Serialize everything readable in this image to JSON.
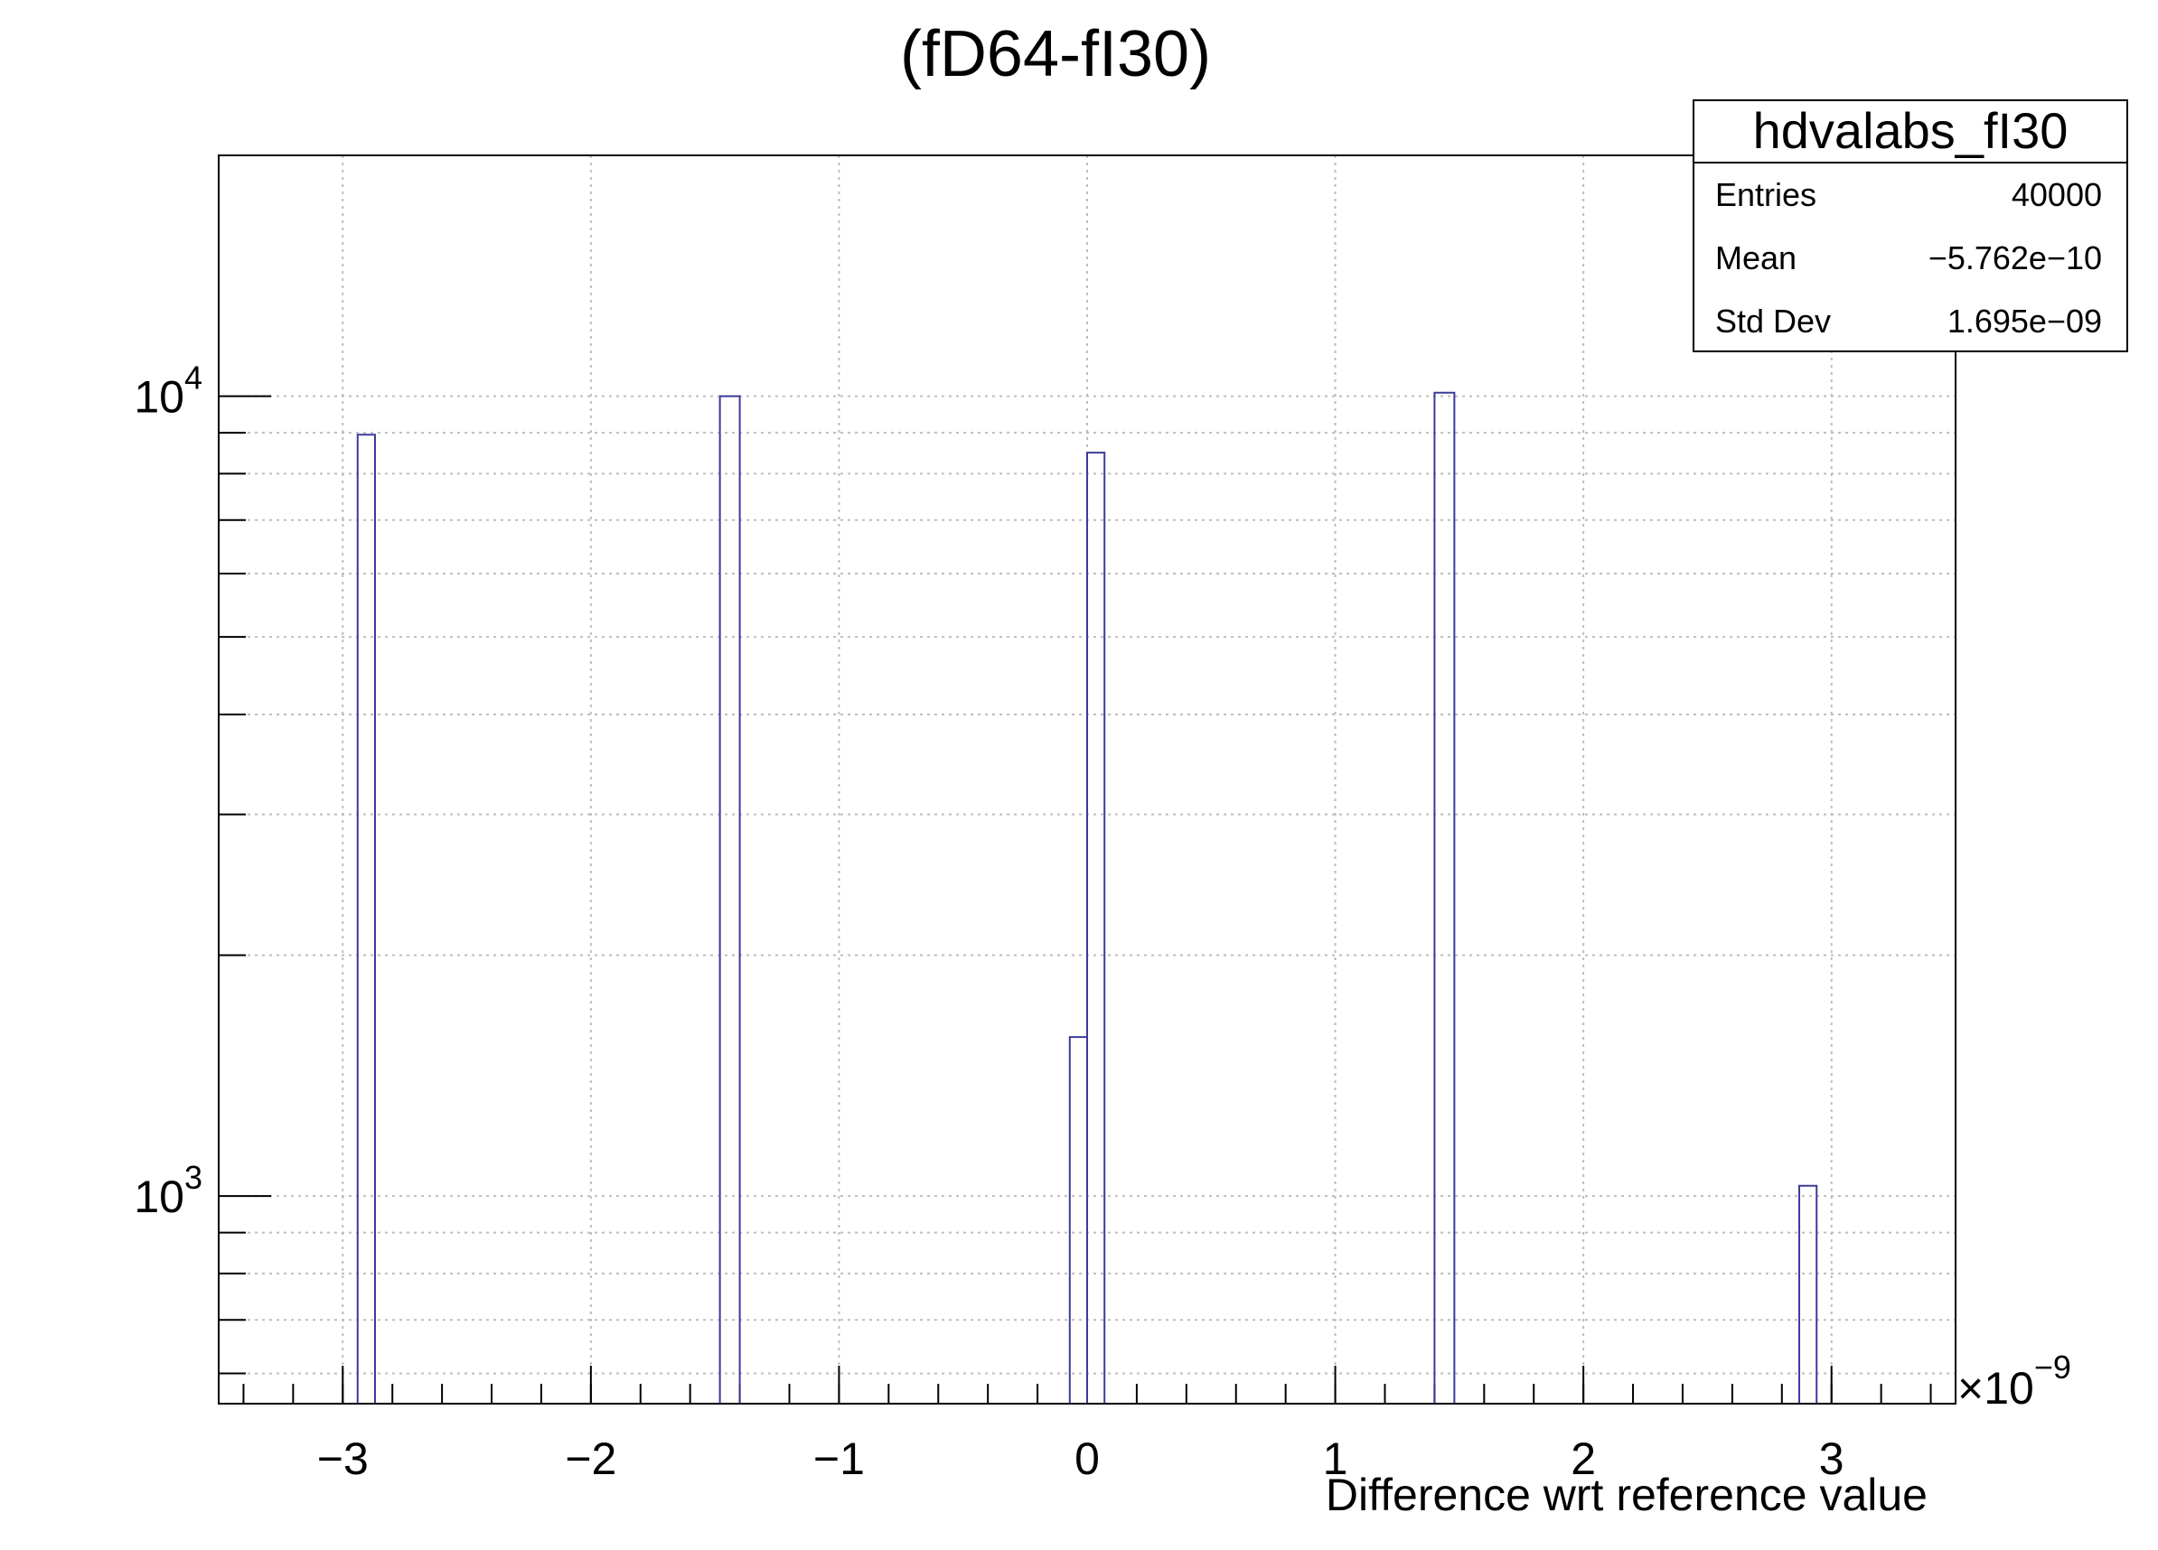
{
  "chart_data": {
    "type": "histogram",
    "title": "(fD64-fI30)",
    "xlabel": "Difference wrt reference value",
    "ylabel": "",
    "x_multiplier_base": "×10",
    "x_multiplier_exponent": "−9",
    "xlim": [
      -3.5,
      3.5
    ],
    "ylim": [
      550,
      20000
    ],
    "y_scale": "log",
    "grid": true,
    "x_ticks": [
      {
        "value": -3,
        "label": "−3"
      },
      {
        "value": -2,
        "label": "−2"
      },
      {
        "value": -1,
        "label": "−1"
      },
      {
        "value": 0,
        "label": "0"
      },
      {
        "value": 1,
        "label": "1"
      },
      {
        "value": 2,
        "label": "2"
      },
      {
        "value": 3,
        "label": "3"
      }
    ],
    "y_ticks": [
      {
        "value": 1000,
        "base": "10",
        "exponent": "3"
      },
      {
        "value": 10000,
        "base": "10",
        "exponent": "4"
      }
    ],
    "bin_width": 0.07,
    "bins": [
      {
        "low": -2.94,
        "high": -2.87,
        "count": 8950
      },
      {
        "low": -1.48,
        "high": -1.4,
        "count": 10000
      },
      {
        "low": -0.07,
        "high": 0.0,
        "count": 1580
      },
      {
        "low": 0.0,
        "high": 0.07,
        "count": 8500
      },
      {
        "low": 1.4,
        "high": 1.48,
        "count": 10100
      },
      {
        "low": 2.87,
        "high": 2.94,
        "count": 1030
      }
    ],
    "line_color": "#3b3b9b",
    "stats_box": {
      "title": "hdvalabs_fI30",
      "rows": [
        {
          "label": "Entries",
          "value": "40000"
        },
        {
          "label": "Mean",
          "value": "−5.762e−10"
        },
        {
          "label": "Std Dev",
          "value": "1.695e−09"
        }
      ]
    }
  }
}
